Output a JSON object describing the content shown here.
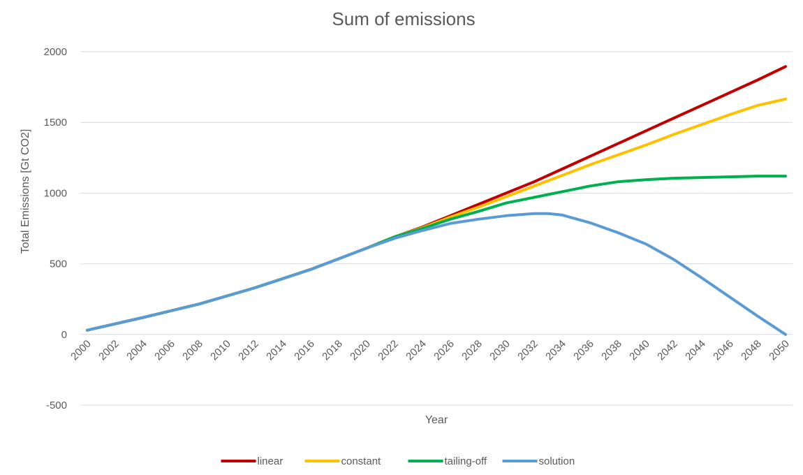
{
  "chart_data": {
    "type": "line",
    "title": "Sum of emissions",
    "xlabel": "Year",
    "ylabel": "Total Emissions [Gt CO2]",
    "xlim": [
      2000,
      2050
    ],
    "ylim": [
      -500,
      2000
    ],
    "yticks": [
      -500,
      0,
      500,
      1000,
      1500,
      2000
    ],
    "ytick_labels": [
      "-500",
      "0",
      "500",
      "1000",
      "1500",
      "2000"
    ],
    "xticks": [
      2000,
      2002,
      2004,
      2006,
      2008,
      2010,
      2012,
      2014,
      2016,
      2018,
      2020,
      2022,
      2024,
      2026,
      2028,
      2030,
      2032,
      2034,
      2036,
      2038,
      2040,
      2042,
      2044,
      2046,
      2048,
      2050
    ],
    "xtick_labels": [
      "2000",
      "2002",
      "2004",
      "2006",
      "2008",
      "2010",
      "2012",
      "2014",
      "2016",
      "2018",
      "2020",
      "2022",
      "2024",
      "2026",
      "2028",
      "2030",
      "2032",
      "2034",
      "2036",
      "2038",
      "2040",
      "2042",
      "2044",
      "2046",
      "2048",
      "2050"
    ],
    "grid": true,
    "legend_position": "bottom",
    "series": [
      {
        "name": "linear",
        "color": "#c00000",
        "x": [
          2000,
          2004,
          2008,
          2012,
          2016,
          2020,
          2022,
          2024,
          2026,
          2028,
          2030,
          2032,
          2034,
          2036,
          2038,
          2040,
          2042,
          2044,
          2046,
          2048,
          2050
        ],
        "y": [
          30,
          120,
          215,
          330,
          460,
          610,
          690,
          760,
          840,
          920,
          1000,
          1080,
          1170,
          1260,
          1350,
          1440,
          1530,
          1620,
          1710,
          1800,
          1895
        ]
      },
      {
        "name": "constant",
        "color": "#ffc000",
        "x": [
          2000,
          2004,
          2008,
          2012,
          2016,
          2020,
          2022,
          2024,
          2026,
          2028,
          2030,
          2032,
          2034,
          2036,
          2038,
          2040,
          2042,
          2044,
          2046,
          2048,
          2050
        ],
        "y": [
          30,
          120,
          215,
          330,
          460,
          610,
          690,
          755,
          830,
          900,
          975,
          1050,
          1125,
          1200,
          1270,
          1340,
          1415,
          1485,
          1555,
          1620,
          1665
        ]
      },
      {
        "name": "tailing-off",
        "color": "#00b050",
        "x": [
          2000,
          2004,
          2008,
          2012,
          2016,
          2020,
          2022,
          2024,
          2026,
          2028,
          2030,
          2032,
          2034,
          2036,
          2038,
          2040,
          2042,
          2044,
          2046,
          2048,
          2050
        ],
        "y": [
          30,
          120,
          215,
          330,
          460,
          610,
          690,
          750,
          815,
          870,
          930,
          970,
          1010,
          1050,
          1080,
          1095,
          1105,
          1110,
          1115,
          1120,
          1120
        ]
      },
      {
        "name": "solution",
        "color": "#5b9bd5",
        "x": [
          2000,
          2004,
          2008,
          2012,
          2016,
          2020,
          2022,
          2024,
          2026,
          2028,
          2030,
          2032,
          2033,
          2034,
          2036,
          2038,
          2040,
          2042,
          2044,
          2046,
          2048,
          2050
        ],
        "y": [
          30,
          120,
          215,
          330,
          460,
          610,
          680,
          735,
          785,
          815,
          840,
          855,
          855,
          845,
          790,
          720,
          640,
          530,
          400,
          265,
          130,
          0
        ]
      }
    ]
  }
}
